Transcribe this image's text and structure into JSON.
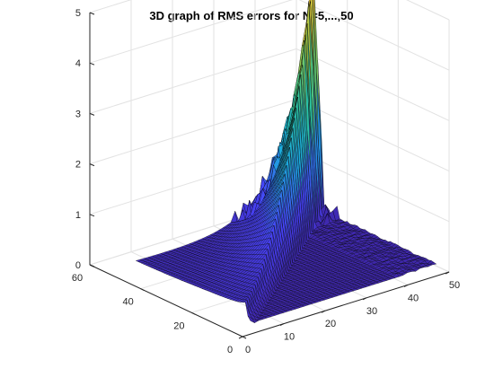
{
  "chart_data": {
    "type": "surface",
    "title": "3D graph of RMS errors for N=5,...,50",
    "x_axis": {
      "lim": [
        0,
        50
      ],
      "ticks": [
        0,
        10,
        20,
        30,
        40,
        50
      ],
      "tick_labels": [
        "0",
        "10",
        "20",
        "30",
        "40",
        "50"
      ]
    },
    "y_axis": {
      "lim": [
        0,
        60
      ],
      "ticks": [
        0,
        20,
        40,
        60
      ],
      "tick_labels": [
        "0",
        "20",
        "40",
        "60"
      ]
    },
    "z_axis": {
      "lim": [
        0,
        5
      ],
      "ticks": [
        0,
        1,
        2,
        3,
        4,
        5
      ],
      "tick_labels": [
        "0",
        "1",
        "2",
        "3",
        "4",
        "5"
      ]
    },
    "grid": true,
    "colormap": [
      "#3e26a8",
      "#4743f8",
      "#1ca9df",
      "#2cc5a0",
      "#99c74a",
      "#f9cb38",
      "#f9fb14"
    ],
    "x_range": [
      5,
      50
    ],
    "y_range": [
      5,
      50
    ],
    "grid_points": 46,
    "shape_description": "near-zero for x>y; wall near diagonal rising with y; peak ~5 near x≈45,y≈50"
  }
}
